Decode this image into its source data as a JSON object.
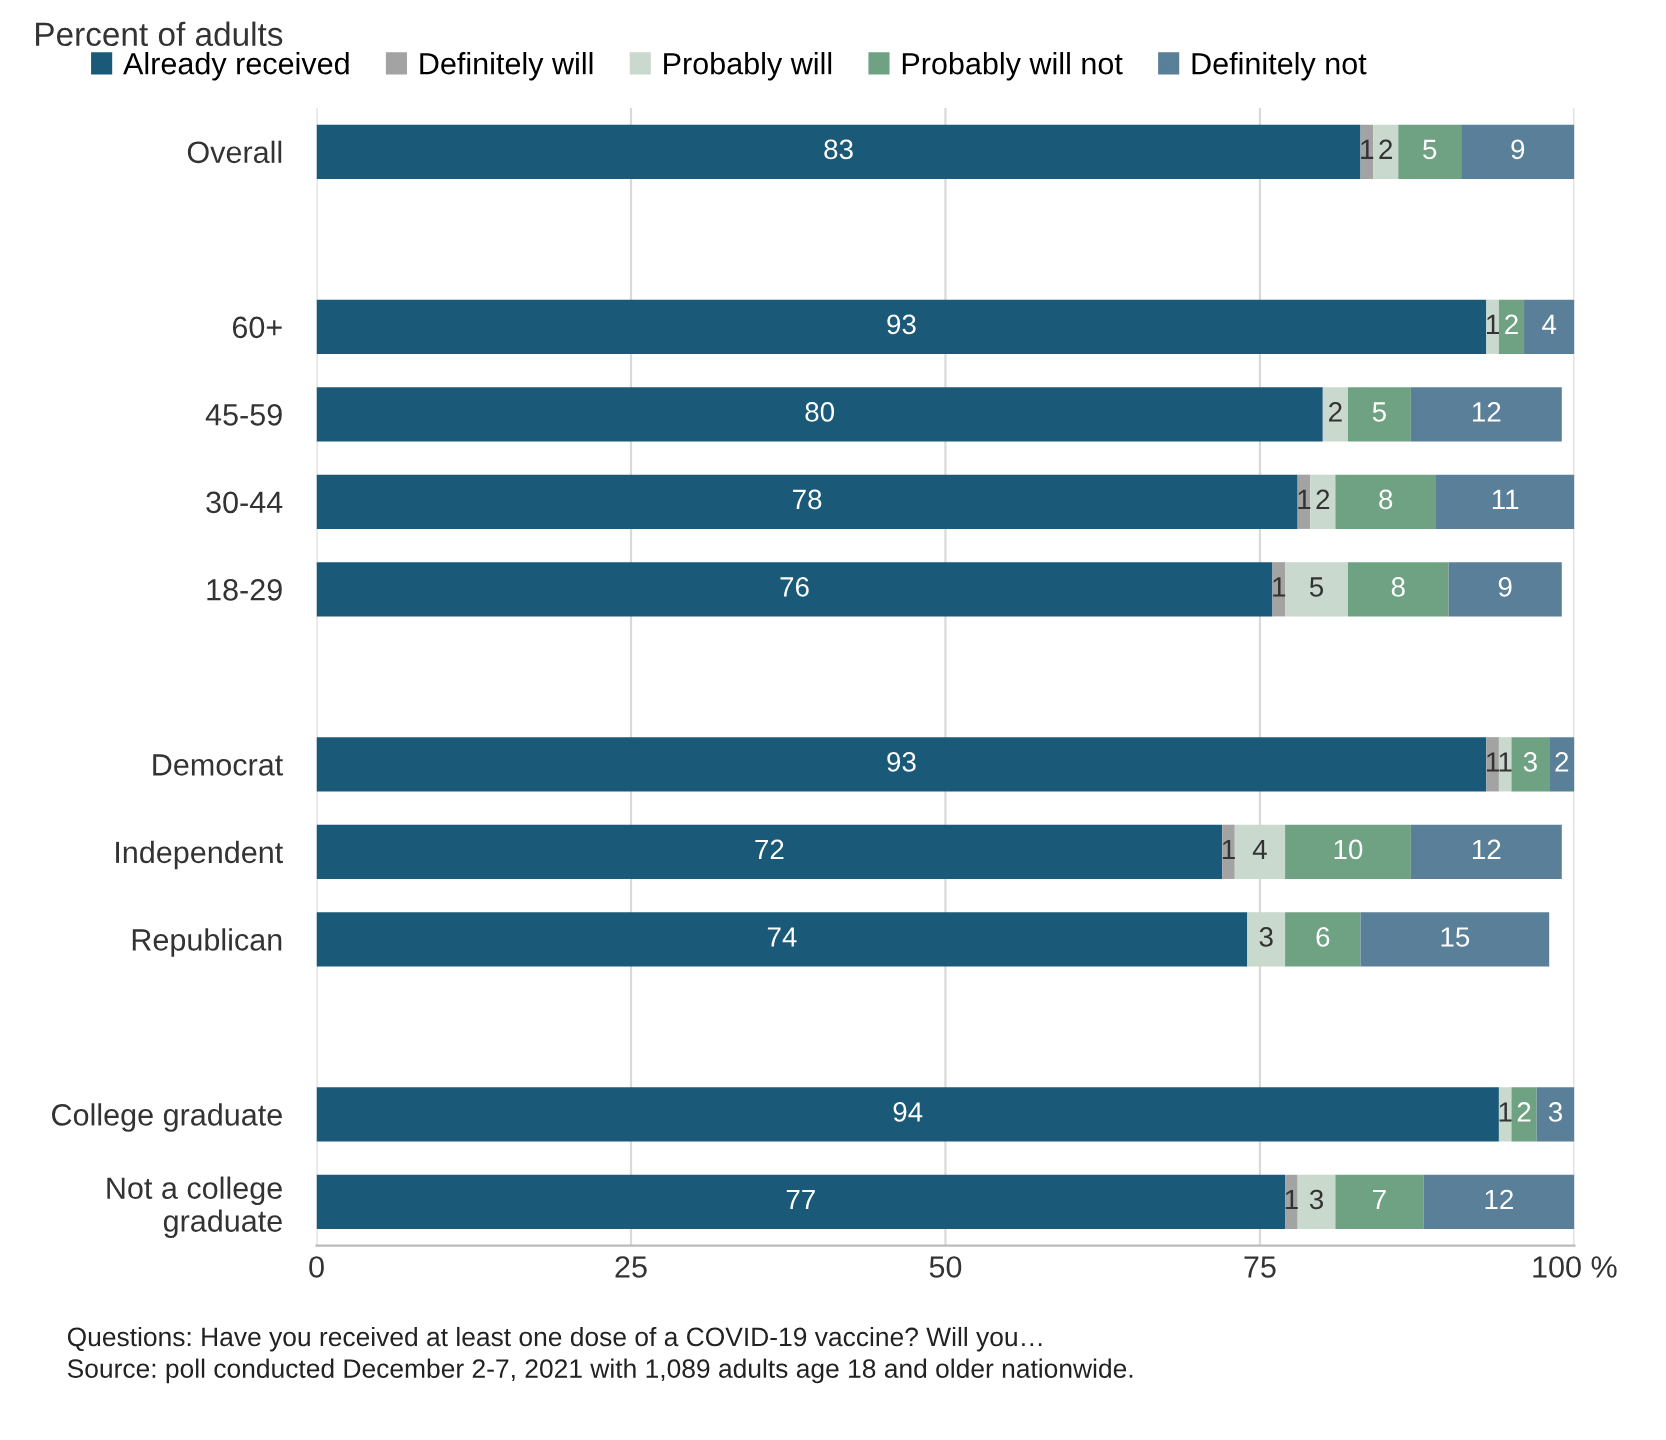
{
  "chart_data": {
    "type": "bar",
    "orientation": "horizontal",
    "stacked": true,
    "subtitle": "Percent of adults",
    "categories": [
      "Overall",
      null,
      "60+",
      "45-59",
      "30-44",
      "18-29",
      null,
      "Democrat",
      "Independent",
      "Republican",
      null,
      "College graduate",
      "Not a college\ngraduate"
    ],
    "series": [
      {
        "name": "Already received",
        "color": "#1a5a78",
        "values": [
          83,
          null,
          93,
          80,
          78,
          76,
          null,
          93,
          72,
          74,
          null,
          94,
          77
        ]
      },
      {
        "name": "Definitely will",
        "color": "#a3a3a3",
        "values": [
          1,
          null,
          null,
          null,
          1,
          1,
          null,
          1,
          1,
          null,
          null,
          null,
          1
        ]
      },
      {
        "name": "Probably will",
        "color": "#c9d9cd",
        "values": [
          2,
          null,
          1,
          2,
          2,
          5,
          null,
          1,
          4,
          3,
          null,
          1,
          3
        ]
      },
      {
        "name": "Probably will not",
        "color": "#6fa283",
        "values": [
          5,
          null,
          2,
          5,
          8,
          8,
          null,
          3,
          10,
          6,
          null,
          2,
          7
        ]
      },
      {
        "name": "Definitely not",
        "color": "#5a7f98",
        "values": [
          9,
          null,
          4,
          12,
          11,
          9,
          null,
          2,
          12,
          15,
          null,
          3,
          12
        ]
      }
    ],
    "xlim": [
      0,
      100
    ],
    "xticks": [
      0,
      25,
      50,
      75,
      {
        "value": 100,
        "label": "100 %"
      }
    ],
    "grid": "x",
    "legend": "top",
    "data_labels": true,
    "annotations": [
      "Questions: Have you received at least one dose of a COVID-19 vaccine? Will you…",
      "Source: poll conducted December 2-7, 2021 with 1,089 adults age 18 and older nationwide."
    ]
  }
}
